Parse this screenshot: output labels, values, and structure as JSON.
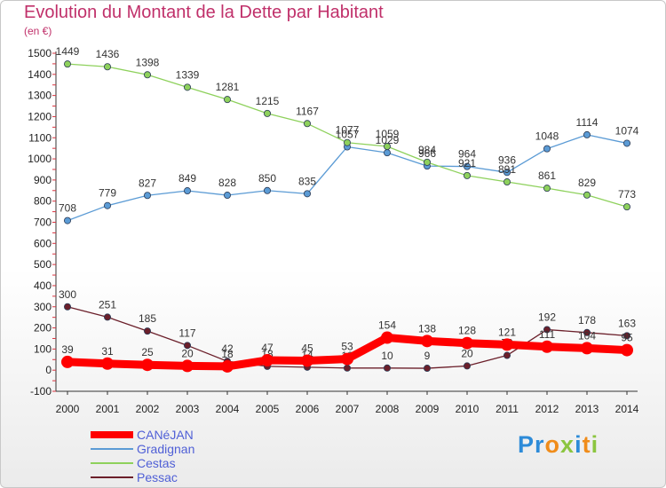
{
  "title": "Evolution du Montant de la Dette par Habitant",
  "subtitle": "(en €)",
  "brand": [
    "Pr",
    "o",
    "x",
    "i",
    "t",
    "i"
  ],
  "chart_data": {
    "type": "line",
    "title": "Evolution du Montant de la Dette par Habitant",
    "subtitle": "(en €)",
    "xlabel": "",
    "ylabel": "",
    "ylim": [
      -100,
      1500
    ],
    "yticks": [
      -100,
      0,
      100,
      200,
      300,
      400,
      500,
      600,
      700,
      800,
      900,
      1000,
      1100,
      1200,
      1300,
      1400,
      1500
    ],
    "grid": false,
    "legend_position": "bottom-left",
    "categories": [
      "2000",
      "2001",
      "2002",
      "2003",
      "2004",
      "2005",
      "2006",
      "2007",
      "2008",
      "2009",
      "2010",
      "2011",
      "2012",
      "2013",
      "2014"
    ],
    "series": [
      {
        "name": "Pessac",
        "color": "#6b1f2a",
        "values": [
          300,
          251,
          185,
          117,
          42,
          18,
          14,
          10,
          10,
          9,
          20,
          70,
          192,
          178,
          163
        ]
      },
      {
        "name": "Gradignan",
        "color": "#5b9bd5",
        "values": [
          708,
          779,
          827,
          849,
          828,
          850,
          835,
          1057,
          1029,
          966,
          964,
          936,
          1048,
          1114,
          1074
        ]
      },
      {
        "name": "Cestas",
        "color": "#8ed15c",
        "values": [
          1449,
          1436,
          1398,
          1339,
          1281,
          1215,
          1167,
          1077,
          1059,
          984,
          921,
          891,
          861,
          829,
          773
        ]
      },
      {
        "name": "CANéJAN",
        "color": "#ff0000",
        "values": [
          39,
          31,
          25,
          20,
          18,
          47,
          45,
          53,
          154,
          138,
          128,
          121,
          111,
          104,
          95
        ]
      }
    ]
  }
}
